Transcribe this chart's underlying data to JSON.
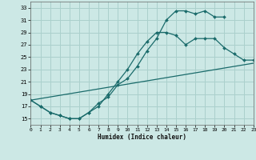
{
  "xlabel": "Humidex (Indice chaleur)",
  "bg_color": "#cce8e5",
  "line_color": "#1a6b6b",
  "grid_color": "#aad0cc",
  "xlim": [
    0,
    23
  ],
  "ylim": [
    14,
    34
  ],
  "yticks": [
    15,
    17,
    19,
    21,
    23,
    25,
    27,
    29,
    31,
    33
  ],
  "xticks": [
    0,
    1,
    2,
    3,
    4,
    5,
    6,
    7,
    8,
    9,
    10,
    11,
    12,
    13,
    14,
    15,
    16,
    17,
    18,
    19,
    20,
    21,
    22,
    23
  ],
  "line1_x": [
    0,
    1,
    2,
    3,
    4,
    5,
    6,
    7,
    8,
    9,
    10,
    11,
    12,
    13,
    14,
    15,
    16,
    17,
    18,
    19,
    20
  ],
  "line1_y": [
    18,
    17,
    16,
    15.5,
    15,
    15,
    16,
    17.5,
    18.5,
    20.5,
    21.5,
    23.5,
    26,
    28,
    31,
    32.5,
    32.5,
    32,
    32.5,
    31.5,
    31.5
  ],
  "line2_x": [
    0,
    1,
    2,
    3,
    4,
    5,
    6,
    7,
    8,
    9,
    10,
    11,
    12,
    13,
    14,
    15,
    16,
    17,
    18,
    19,
    20,
    21,
    22,
    23
  ],
  "line2_y": [
    18,
    17,
    16,
    15.5,
    15,
    15,
    16,
    17,
    19,
    21,
    23,
    25.5,
    27.5,
    29,
    29,
    28.5,
    27,
    28,
    28,
    28,
    26.5,
    25.5,
    24.5,
    24.5
  ],
  "line3_x": [
    0,
    23
  ],
  "line3_y": [
    18,
    24
  ],
  "marker_style": "D",
  "markersize": 2.0,
  "linewidth": 0.9
}
